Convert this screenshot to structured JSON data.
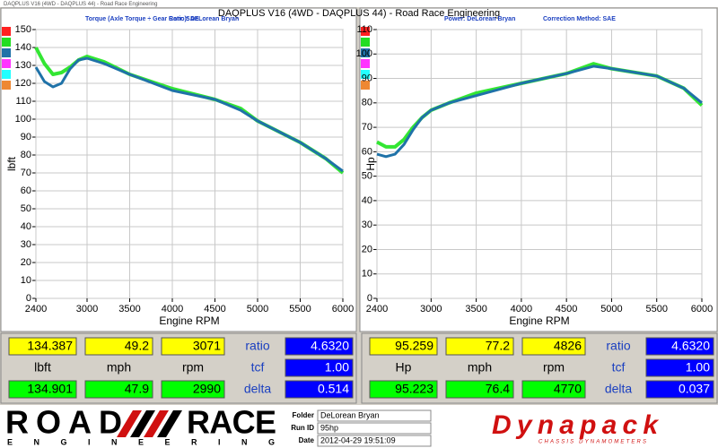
{
  "window_title": "DAQPLUS V16 (4WD - DAQPLUS 44) - Road Race Engineering",
  "chart_data": [
    {
      "type": "line",
      "title": "Torque (Axle Torque ÷ Gear Ratio): DeLorean Bryan",
      "subtitle": "Corr: SAE",
      "x_label": "Engine RPM",
      "y_label": "lbft",
      "x": [
        2400,
        2500,
        2600,
        2700,
        2800,
        2900,
        3000,
        3200,
        3500,
        4000,
        4500,
        4800,
        5000,
        5500,
        5800,
        6000
      ],
      "series": [
        {
          "color": "#33e633",
          "values": [
            140,
            131,
            125,
            126,
            129,
            133,
            135,
            132,
            125,
            117,
            111,
            106,
            99,
            87,
            78,
            70
          ]
        },
        {
          "color": "#1f72a8",
          "values": [
            129,
            121,
            118,
            120,
            128,
            133,
            134,
            131,
            125,
            116,
            111,
            105,
            99,
            87,
            78,
            71
          ]
        }
      ],
      "xlim": [
        2400,
        6000
      ],
      "xticks": [
        2400,
        3000,
        3500,
        4000,
        4500,
        5000,
        5500,
        6000
      ],
      "ylim": [
        0,
        150
      ],
      "yticks": [
        0,
        10,
        20,
        30,
        40,
        50,
        60,
        70,
        80,
        90,
        100,
        110,
        120,
        130,
        140,
        150
      ],
      "grid": true
    },
    {
      "type": "line",
      "title": "Power: DeLorean Bryan",
      "subtitle": "Correction Method: SAE",
      "x_label": "Engine RPM",
      "y_label": "Hp",
      "x": [
        2400,
        2500,
        2600,
        2700,
        2800,
        2900,
        3000,
        3200,
        3500,
        4000,
        4500,
        4800,
        5000,
        5500,
        5800,
        6000
      ],
      "series": [
        {
          "color": "#33e633",
          "values": [
            64,
            62,
            62,
            65,
            70,
            74,
            77,
            80,
            84,
            88,
            92,
            96,
            94,
            91,
            86,
            79
          ]
        },
        {
          "color": "#1f72a8",
          "values": [
            59,
            58,
            59,
            63,
            69,
            74,
            77,
            80,
            83,
            88,
            92,
            95,
            94,
            91,
            86,
            80
          ]
        }
      ],
      "xlim": [
        2400,
        6000
      ],
      "xticks": [
        2400,
        3000,
        3500,
        4000,
        4500,
        5000,
        5500,
        6000
      ],
      "ylim": [
        0,
        110
      ],
      "yticks": [
        0,
        10,
        20,
        30,
        40,
        50,
        60,
        70,
        80,
        90,
        100,
        110
      ],
      "grid": true
    }
  ],
  "readouts": [
    {
      "top": [
        "134.387",
        "49.2",
        "3071"
      ],
      "units": [
        "lbft",
        "mph",
        "rpm"
      ],
      "bottom": [
        "134.901",
        "47.9",
        "2990"
      ],
      "params": [
        {
          "label": "ratio",
          "value": "4.6320"
        },
        {
          "label": "tcf",
          "value": "1.00"
        },
        {
          "label": "delta",
          "value": "0.514"
        }
      ]
    },
    {
      "top": [
        "95.259",
        "77.2",
        "4826"
      ],
      "units": [
        "Hp",
        "mph",
        "rpm"
      ],
      "bottom": [
        "95.223",
        "76.4",
        "4770"
      ],
      "params": [
        {
          "label": "ratio",
          "value": "4.6320"
        },
        {
          "label": "tcf",
          "value": "1.00"
        },
        {
          "label": "delta",
          "value": "0.037"
        }
      ]
    }
  ],
  "footer": {
    "logo_left": "ROAD",
    "logo_right": "RACE",
    "logo_sub": "ENGINEERING",
    "fields": [
      {
        "label": "Folder",
        "value": "DeLorean Bryan"
      },
      {
        "label": "Run ID",
        "value": "95hp"
      },
      {
        "label": "Date",
        "value": "2012-04-29 19:51:09"
      }
    ],
    "brand": "Dynapack",
    "brand_sub": "CHASSIS DYNAMOMETERS"
  }
}
